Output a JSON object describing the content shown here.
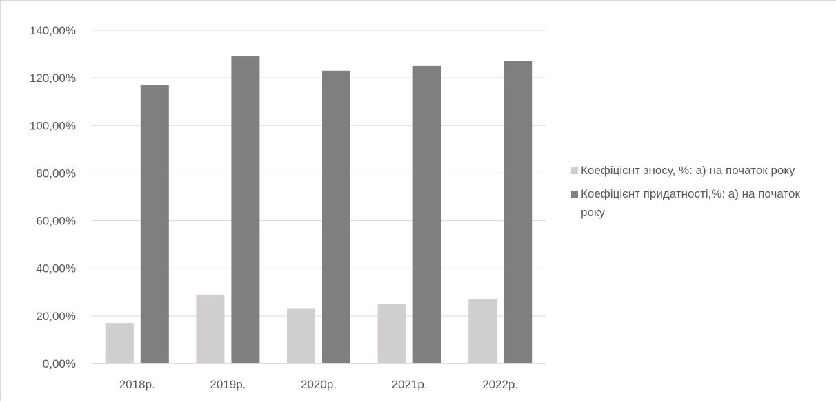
{
  "chart_data": {
    "type": "bar",
    "categories": [
      "2018р.",
      "2019р.",
      "2020р.",
      "2021р.",
      "2022р."
    ],
    "series": [
      {
        "name": "Коефіцієнт зносу, %: а) на початок року",
        "values": [
          17,
          29,
          23,
          25,
          27
        ],
        "color": "#d0cece"
      },
      {
        "name": "Коефіцієнт придатності,%: а) на початок року",
        "values": [
          117,
          129,
          123,
          125,
          127
        ],
        "color": "#7f7f7f"
      }
    ],
    "yticks": [
      "0,00%",
      "20,00%",
      "40,00%",
      "60,00%",
      "80,00%",
      "100,00%",
      "120,00%",
      "140,00%"
    ],
    "ylim": [
      0,
      140
    ],
    "unit": "%",
    "grid": true,
    "legend_position": "right",
    "gridline_color": "#d9d9d9",
    "axis_color": "#bfbfbf"
  }
}
